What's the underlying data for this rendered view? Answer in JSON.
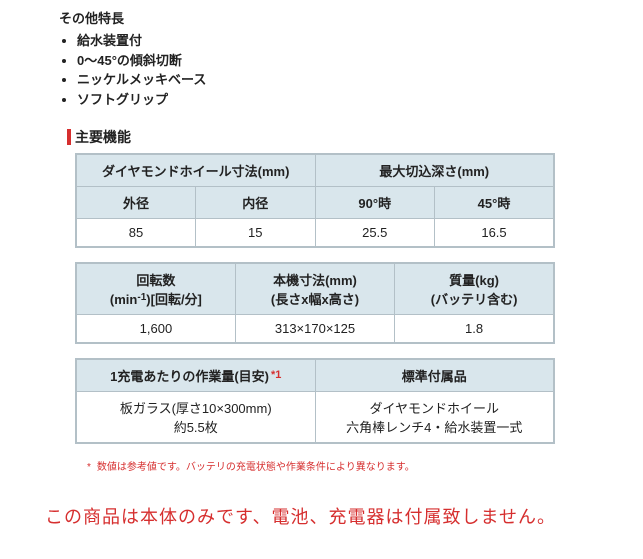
{
  "features": {
    "title": "その他特長",
    "items": [
      "給水装置付",
      "0〜45°の傾斜切断",
      "ニッケルメッキベース",
      "ソフトグリップ"
    ]
  },
  "section_title": "主要機能",
  "table1": {
    "h1": "ダイヤモンドホイール寸法(mm)",
    "h2": "最大切込深さ(mm)",
    "sub": [
      "外径",
      "内径",
      "90°時",
      "45°時"
    ],
    "row": [
      "85",
      "15",
      "25.5",
      "16.5"
    ]
  },
  "table2": {
    "h_rot_pre": "回転数",
    "h_rot_line2_a": "(min",
    "h_rot_sup": "-1",
    "h_rot_line2_b": ")[回転/分]",
    "h_dim1": "本機寸法(mm)",
    "h_dim2": "(長さx幅x高さ)",
    "h_mass1": "質量(kg)",
    "h_mass2": "(バッテリ含む)",
    "row": [
      "1,600",
      "313×170×125",
      "1.8"
    ]
  },
  "table3": {
    "h_work": "1充電あたりの作業量(目安)",
    "h_work_ast": "*1",
    "h_acc": "標準付属品",
    "work1": "板ガラス(厚さ10×300mm)",
    "work2": "約5.5枚",
    "acc1": "ダイヤモンドホイール",
    "acc2": "六角棒レンチ4・給水装置一式"
  },
  "footnote_ast": "*",
  "footnote_text": "数値は参考値です。バッテリの充電状態や作業条件により異なります。",
  "notice": "この商品は本体のみです、電池、充電器は付属致しません。"
}
